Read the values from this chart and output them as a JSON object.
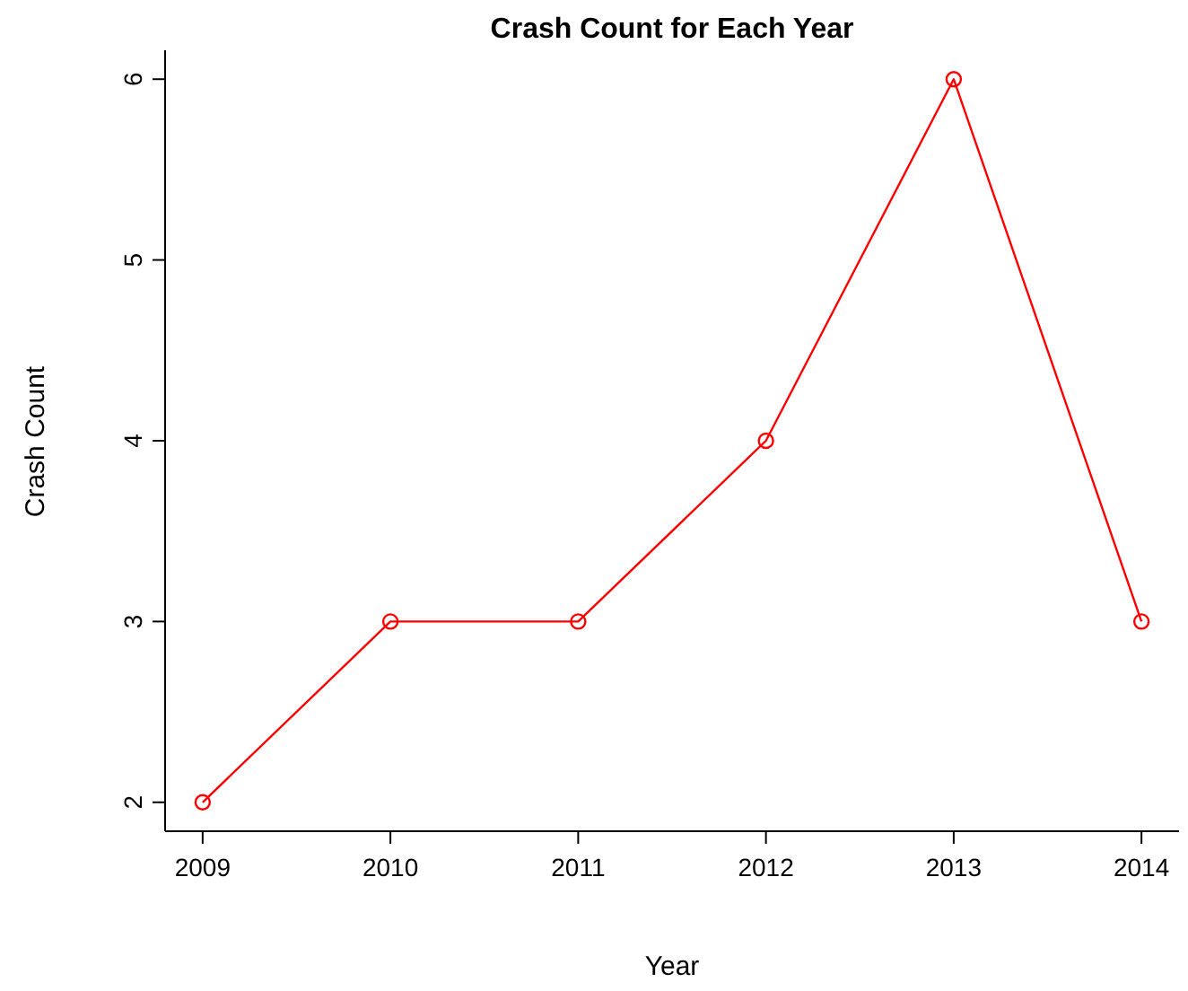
{
  "chart_data": {
    "type": "line",
    "title": "Crash Count for Each Year",
    "xlabel": "Year",
    "ylabel": "Crash Count",
    "x": [
      2009,
      2010,
      2011,
      2012,
      2013,
      2014
    ],
    "values": [
      2,
      3,
      3,
      4,
      6,
      3
    ],
    "color": "#ff0000",
    "marker": "circle",
    "xlim": [
      2008.8,
      2014.2
    ],
    "xticks": [
      2009,
      2010,
      2011,
      2012,
      2013,
      2014
    ],
    "ylim": [
      1.84,
      6.16
    ],
    "yticks": [
      2,
      3,
      4,
      5,
      6
    ]
  }
}
